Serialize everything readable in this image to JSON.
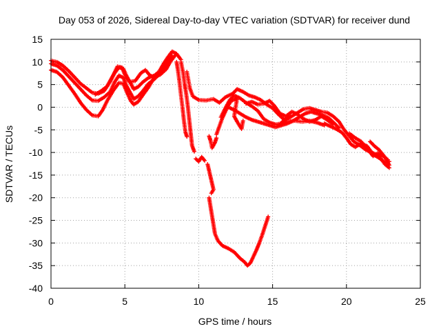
{
  "chart_data": {
    "type": "scatter",
    "title": "Day 053 of 2026, Sidereal Day-to-day VTEC variation (SDTVAR) for receiver dund",
    "xlabel": "GPS time / hours",
    "ylabel": "SDTVAR / TECUs",
    "xlim": [
      0,
      25
    ],
    "ylim": [
      -40,
      15
    ],
    "xticks": [
      0,
      5,
      10,
      15,
      20,
      25
    ],
    "yticks": [
      15,
      10,
      5,
      0,
      -5,
      -10,
      -15,
      -20,
      -25,
      -30,
      -35,
      -40
    ],
    "xtick_labels": [
      "0",
      "5",
      "10",
      "15",
      "20",
      "25"
    ],
    "ytick_labels": [
      "15",
      "10",
      "5",
      "0",
      "-5",
      "-10",
      "-15",
      "-20",
      "-25",
      "-30",
      "-35",
      "-40"
    ],
    "grid": true,
    "marker": "+",
    "color": "#ff0000",
    "series": [
      {
        "name": "track-a",
        "points": [
          [
            0.0,
            10.3
          ],
          [
            0.4,
            10.0
          ],
          [
            0.8,
            9.2
          ],
          [
            1.2,
            8.0
          ],
          [
            1.6,
            6.6
          ],
          [
            2.0,
            5.2
          ],
          [
            2.4,
            4.2
          ],
          [
            2.8,
            3.2
          ],
          [
            3.2,
            3.0
          ],
          [
            3.6,
            3.6
          ],
          [
            4.0,
            5.6
          ],
          [
            4.3,
            7.5
          ],
          [
            4.6,
            8.8
          ],
          [
            4.9,
            8.5
          ],
          [
            5.1,
            7.0
          ],
          [
            5.4,
            5.2
          ],
          [
            5.6,
            4.0
          ],
          [
            5.9,
            4.5
          ],
          [
            6.2,
            5.5
          ],
          [
            6.6,
            6.5
          ],
          [
            7.0,
            7.0
          ],
          [
            7.3,
            7.8
          ],
          [
            7.6,
            9.5
          ],
          [
            7.9,
            11.0
          ],
          [
            8.2,
            12.3
          ],
          [
            8.5,
            11.8
          ],
          [
            8.8,
            10.5
          ]
        ]
      },
      {
        "name": "track-b",
        "points": [
          [
            0.0,
            9.6
          ],
          [
            0.4,
            9.2
          ],
          [
            0.8,
            8.2
          ],
          [
            1.2,
            6.8
          ],
          [
            1.6,
            5.4
          ],
          [
            2.0,
            4.0
          ],
          [
            2.4,
            2.6
          ],
          [
            2.8,
            1.5
          ],
          [
            3.2,
            1.4
          ],
          [
            3.6,
            2.2
          ],
          [
            4.0,
            3.4
          ],
          [
            4.3,
            5.5
          ],
          [
            4.6,
            7.0
          ],
          [
            4.9,
            6.5
          ],
          [
            5.1,
            4.8
          ],
          [
            5.4,
            3.0
          ],
          [
            5.6,
            1.8
          ],
          [
            5.9,
            2.4
          ],
          [
            6.2,
            3.5
          ],
          [
            6.6,
            5.2
          ],
          [
            7.0,
            6.2
          ],
          [
            7.3,
            7.2
          ],
          [
            7.6,
            8.4
          ],
          [
            7.9,
            9.8
          ],
          [
            8.2,
            10.6
          ]
        ]
      },
      {
        "name": "track-c",
        "points": [
          [
            0.0,
            8.2
          ],
          [
            0.4,
            7.8
          ],
          [
            0.8,
            6.6
          ],
          [
            1.2,
            4.8
          ],
          [
            1.6,
            3.0
          ],
          [
            2.0,
            1.0
          ],
          [
            2.4,
            -0.6
          ],
          [
            2.8,
            -1.8
          ],
          [
            3.2,
            -2.0
          ],
          [
            3.5,
            -0.6
          ],
          [
            3.8,
            1.4
          ],
          [
            4.2,
            3.6
          ],
          [
            4.6,
            5.4
          ],
          [
            4.9,
            5.2
          ],
          [
            5.1,
            3.6
          ],
          [
            5.4,
            1.4
          ],
          [
            5.6,
            0.6
          ],
          [
            5.9,
            1.2
          ],
          [
            6.2,
            2.6
          ],
          [
            6.6,
            4.4
          ],
          [
            7.0,
            6.6
          ],
          [
            7.4,
            7.2
          ],
          [
            7.8,
            8.4
          ],
          [
            8.1,
            10.2
          ],
          [
            8.4,
            11.4
          ]
        ]
      },
      {
        "name": "track-d",
        "points": [
          [
            3.0,
            2.8
          ],
          [
            3.4,
            3.6
          ],
          [
            3.8,
            4.6
          ],
          [
            4.2,
            7.0
          ],
          [
            4.5,
            9.0
          ],
          [
            4.8,
            8.8
          ],
          [
            5.0,
            7.2
          ],
          [
            5.3,
            5.6
          ],
          [
            5.7,
            5.8
          ],
          [
            6.1,
            7.6
          ],
          [
            6.4,
            8.2
          ],
          [
            6.7,
            7.0
          ],
          [
            7.0,
            6.6
          ],
          [
            7.4,
            7.6
          ],
          [
            7.8,
            9.6
          ],
          [
            8.2,
            11.4
          ]
        ]
      },
      {
        "name": "drop-1",
        "points": [
          [
            8.5,
            10.0
          ],
          [
            8.6,
            8.0
          ],
          [
            8.7,
            5.5
          ],
          [
            8.8,
            2.6
          ],
          [
            8.9,
            0.0
          ],
          [
            9.0,
            -3.0
          ],
          [
            9.1,
            -5.5
          ],
          [
            9.2,
            -6.5
          ]
        ]
      },
      {
        "name": "drop-2",
        "points": [
          [
            8.8,
            10.0
          ],
          [
            8.95,
            7.5
          ],
          [
            9.05,
            5.0
          ],
          [
            9.15,
            3.0
          ],
          [
            9.25,
            0.5
          ],
          [
            9.35,
            -2.5
          ],
          [
            9.45,
            -5.5
          ],
          [
            9.55,
            -8.5
          ],
          [
            9.7,
            -9.8
          ]
        ]
      },
      {
        "name": "track-e",
        "points": [
          [
            9.2,
            7.8
          ],
          [
            9.4,
            4.2
          ],
          [
            9.6,
            2.4
          ],
          [
            10.0,
            1.6
          ],
          [
            10.5,
            1.5
          ],
          [
            11.0,
            1.8
          ],
          [
            11.4,
            1.0
          ],
          [
            11.8,
            2.2
          ],
          [
            12.3,
            3.0
          ],
          [
            12.6,
            4.0
          ],
          [
            13.0,
            3.4
          ],
          [
            13.4,
            2.6
          ],
          [
            13.8,
            2.2
          ],
          [
            14.2,
            1.6
          ],
          [
            14.6,
            0.6
          ],
          [
            15.0,
            -0.2
          ],
          [
            15.4,
            -1.6
          ],
          [
            15.8,
            -2.8
          ],
          [
            16.2,
            -2.2
          ]
        ]
      },
      {
        "name": "track-f",
        "points": [
          [
            11.5,
            -2.2
          ],
          [
            11.8,
            -0.2
          ],
          [
            12.1,
            1.6
          ],
          [
            12.4,
            2.6
          ],
          [
            12.8,
            2.0
          ],
          [
            13.2,
            1.0
          ],
          [
            13.6,
            0.2
          ],
          [
            14.0,
            -0.8
          ],
          [
            14.4,
            -2.6
          ],
          [
            14.8,
            -3.4
          ],
          [
            15.2,
            -3.8
          ],
          [
            15.6,
            -3.6
          ],
          [
            16.0,
            -3.2
          ],
          [
            16.5,
            -3.0
          ],
          [
            17.0,
            -3.2
          ],
          [
            17.5,
            -3.0
          ],
          [
            18.0,
            -3.4
          ],
          [
            18.5,
            -4.0
          ]
        ]
      },
      {
        "name": "track-g",
        "points": [
          [
            12.0,
            0.0
          ],
          [
            12.4,
            -0.6
          ],
          [
            12.8,
            -1.4
          ],
          [
            13.2,
            -2.2
          ],
          [
            13.6,
            -2.8
          ],
          [
            14.0,
            -3.2
          ],
          [
            14.4,
            -3.6
          ],
          [
            14.8,
            -4.0
          ],
          [
            15.2,
            -4.4
          ],
          [
            15.6,
            -4.0
          ],
          [
            16.0,
            -3.6
          ],
          [
            16.4,
            -3.0
          ],
          [
            16.8,
            -2.2
          ],
          [
            17.2,
            -1.4
          ],
          [
            17.6,
            -1.0
          ],
          [
            18.0,
            -1.4
          ],
          [
            18.4,
            -1.8
          ],
          [
            18.8,
            -2.4
          ],
          [
            19.2,
            -3.6
          ],
          [
            19.5,
            -4.6
          ]
        ]
      },
      {
        "name": "track-h",
        "points": [
          [
            13.2,
            0.8
          ],
          [
            13.6,
            1.2
          ],
          [
            14.0,
            0.6
          ],
          [
            14.4,
            0.8
          ],
          [
            14.8,
            1.4
          ],
          [
            15.1,
            0.4
          ],
          [
            15.5,
            -1.4
          ],
          [
            15.9,
            -2.0
          ],
          [
            16.3,
            -1.0
          ],
          [
            16.7,
            -1.6
          ],
          [
            17.1,
            -2.6
          ],
          [
            17.5,
            -3.2
          ],
          [
            17.9,
            -2.8
          ],
          [
            18.3,
            -2.0
          ],
          [
            18.7,
            -2.8
          ],
          [
            19.1,
            -3.8
          ]
        ]
      },
      {
        "name": "track-i",
        "points": [
          [
            11.2,
            -6.0
          ],
          [
            11.4,
            -4.2
          ],
          [
            11.6,
            -2.4
          ],
          [
            11.8,
            -1.0
          ],
          [
            12.0,
            0.4
          ],
          [
            12.2,
            1.4
          ],
          [
            12.6,
            2.0
          ],
          [
            12.4,
            -2.0
          ],
          [
            12.6,
            -3.2
          ],
          [
            12.9,
            -4.8
          ],
          [
            13.0,
            -3.0
          ]
        ]
      },
      {
        "name": "track-j",
        "points": [
          [
            10.7,
            -6.4
          ],
          [
            10.8,
            -7.4
          ],
          [
            10.9,
            -9.0
          ],
          [
            11.1,
            -7.8
          ],
          [
            11.2,
            -6.8
          ]
        ]
      },
      {
        "name": "track-k",
        "points": [
          [
            15.5,
            -3.8
          ],
          [
            15.9,
            -2.4
          ],
          [
            16.3,
            -2.0
          ],
          [
            16.7,
            -1.2
          ],
          [
            17.1,
            -0.4
          ],
          [
            17.5,
            -0.2
          ],
          [
            17.9,
            -0.6
          ],
          [
            18.3,
            -1.0
          ],
          [
            18.7,
            -1.2
          ],
          [
            19.1,
            -2.0
          ],
          [
            19.5,
            -3.2
          ],
          [
            19.8,
            -4.8
          ],
          [
            20.1,
            -6.0
          ],
          [
            20.5,
            -7.6
          ],
          [
            20.9,
            -8.4
          ],
          [
            21.3,
            -9.4
          ],
          [
            21.7,
            -10.0
          ],
          [
            22.1,
            -10.6
          ],
          [
            22.4,
            -11.6
          ],
          [
            22.6,
            -12.6
          ],
          [
            22.9,
            -13.4
          ]
        ]
      },
      {
        "name": "track-l",
        "points": [
          [
            18.5,
            -3.6
          ],
          [
            18.9,
            -4.2
          ],
          [
            19.3,
            -4.8
          ],
          [
            19.7,
            -5.6
          ],
          [
            20.0,
            -6.8
          ],
          [
            20.3,
            -8.2
          ],
          [
            20.6,
            -8.8
          ],
          [
            21.0,
            -8.0
          ],
          [
            21.4,
            -8.6
          ],
          [
            21.8,
            -10.4
          ],
          [
            22.2,
            -11.2
          ],
          [
            22.6,
            -12.2
          ],
          [
            22.9,
            -12.0
          ]
        ]
      },
      {
        "name": "track-m",
        "points": [
          [
            20.2,
            -5.8
          ],
          [
            20.6,
            -6.8
          ],
          [
            21.0,
            -7.6
          ],
          [
            21.4,
            -9.2
          ],
          [
            21.8,
            -10.8
          ],
          [
            22.1,
            -10.2
          ],
          [
            22.4,
            -10.6
          ],
          [
            22.8,
            -11.6
          ]
        ]
      },
      {
        "name": "track-n",
        "points": [
          [
            21.6,
            -7.6
          ],
          [
            21.9,
            -8.6
          ],
          [
            22.2,
            -9.4
          ],
          [
            22.6,
            -11.0
          ],
          [
            22.9,
            -12.8
          ]
        ]
      },
      {
        "name": "track-o",
        "points": [
          [
            9.8,
            -11.4
          ],
          [
            10.0,
            -12.0
          ],
          [
            10.2,
            -11.0
          ],
          [
            10.4,
            -11.8
          ]
        ]
      },
      {
        "name": "track-p",
        "points": [
          [
            10.6,
            -12.6
          ],
          [
            10.7,
            -14.0
          ],
          [
            10.8,
            -15.4
          ],
          [
            10.9,
            -16.8
          ],
          [
            11.0,
            -18.2
          ],
          [
            10.85,
            -19.0
          ]
        ]
      },
      {
        "name": "deep-dip",
        "points": [
          [
            10.7,
            -20.0
          ],
          [
            10.8,
            -22.0
          ],
          [
            10.9,
            -24.0
          ],
          [
            11.0,
            -26.0
          ],
          [
            11.1,
            -28.0
          ],
          [
            11.3,
            -29.5
          ],
          [
            11.6,
            -30.6
          ],
          [
            12.0,
            -31.2
          ],
          [
            12.4,
            -32.0
          ],
          [
            12.8,
            -33.4
          ],
          [
            13.1,
            -34.2
          ],
          [
            13.3,
            -35.0
          ],
          [
            13.5,
            -34.4
          ],
          [
            13.7,
            -33.0
          ],
          [
            13.9,
            -31.6
          ],
          [
            14.1,
            -30.0
          ],
          [
            14.3,
            -28.2
          ],
          [
            14.5,
            -26.2
          ],
          [
            14.7,
            -24.2
          ]
        ]
      }
    ]
  }
}
